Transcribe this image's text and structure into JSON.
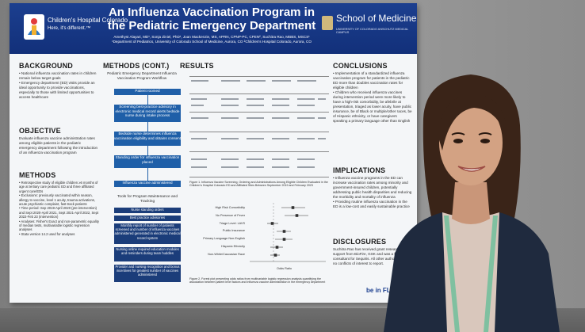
{
  "poster": {
    "title": "An Influenza Vaccination Program in the Pediatric Emergency Department",
    "authors": "Amethyst Alayari, MD¹, Sonja Ziniel, PhD¹, Joan Mackenzie, MS, APRN, CPNP-PC, CPEN², Suchitra Rao, MBBS, MSCS¹",
    "affiliations": "¹Department of Pediatrics, University of Colorado School of Medicine, Aurora, CO  ²Children's Hospital Colorado, Aurora, CO",
    "left_logo": {
      "name": "Children's Hospital Colorado",
      "tagline": "Here, it's different.™"
    },
    "right_logo": {
      "name": "School of Medicine",
      "sub": "UNIVERSITY OF COLORADO ANSCHUTZ MEDICAL CAMPUS"
    },
    "sections": {
      "background": {
        "heading": "BACKGROUND",
        "bullets": [
          "National influenza vaccination rates in children remain below target goals",
          "Emergency department (ED) visits provide an ideal opportunity to provide vaccinations, especially to those with limited opportunities to access healthcare"
        ]
      },
      "objective": {
        "heading": "OBJECTIVE",
        "text": "Evaluate influenza vaccine administration rates among eligible patients in the pediatric emergency department following the introduction of an influenza vaccination program"
      },
      "methods": {
        "heading": "METHODS",
        "bullets": [
          "Retrospective study of eligible children ≥6 months of age at tertiary care pediatric ED and three affiliated urgent care/EDs",
          "Exclusions: previously vaccinated within season, allergy to vaccine, level 1 acuity, trauma activations, acute psychiatric complaint, fast-track patients",
          "Time period: Sep 2019-April 2020 (pre-intervention) and Sept 2020-April 2021, Sept 2021-April 2022, Sept 2022-Feb 23 (intervention)",
          "Analyses: Fisher's Exact and non-parametric equality of median tests, multivariable logistic regression analyses",
          "Stata version 14.2 used for analyses"
        ]
      },
      "methods_cont": {
        "heading": "METHODS (CONT.)",
        "subtitle": "Pediatric Emergency Department Influenza Vaccination Program Workflow",
        "flow": [
          "Patient roomed",
          "Screening best-practice advisory in electronic medical record alerts bedside nurse during intake process",
          "Bedside nurse determines influenza vaccination eligibility and obtains consent",
          "Standing order for influenza vaccination placed",
          "Influenza vaccine administered"
        ],
        "tools_title": "Tools for Program Maintenance and Tracking",
        "tools": [
          "Nurse standing orders",
          "Best practice advisories",
          "Monthly report of number of patients screened and number of influenza vaccines administered generated in electronic medical record system",
          "Nursing online required education modules and reminders during team huddles",
          "Provider and nursing recognition and bonus incentives for greatest number of vaccines administered"
        ]
      },
      "results": {
        "heading": "RESULTS",
        "table_caption": "Figure 1. Influenza Vaccine Screening, Ordering and Administrations Among Eligible Children Evaluated in the Children's Hospital Colorado ED and Affiliated Sites Between September 2019 and February 2023",
        "figure2_caption": "Figure 2. Forest plot presenting odds ratios from multivariable logistic regression analysis quantifying the association between patient level factors and influenza vaccine administration in the emergency department",
        "forest_labels": [
          "High Risk Comorbidity",
          "No Presence of Fever",
          "Triage Level: LAVS",
          "Public Insurance",
          "Primary Language Non-English",
          "Hispanic Ethnicity",
          "Non-White/Caucasian Race"
        ],
        "forest_xlabel": "Odds Ratio"
      },
      "conclusions": {
        "heading": "CONCLUSIONS",
        "bullets": [
          "Implementation of a standardized influenza vaccination program for patients in the pediatric ED more than doubles vaccination rates for eligible children",
          "Children who received influenza vaccines during intervention period were more likely to have a high-risk comorbidity, be afebrile at presentation, triaged as lower acuity, have public insurance, be of Black or multiple/other races, be of Hispanic ethnicity, or have caregivers speaking a primary language other than English"
        ]
      },
      "implications": {
        "heading": "IMPLICATIONS",
        "bullets": [
          "Influenza vaccine programs in the ED can increase vaccination rates among minority and government-insured children, potentially addressing public health disparities and reducing the morbidity and mortality of influenza",
          "Providing routine influenza vaccination in the ED is a low-cost and easily sustainable practice"
        ]
      },
      "disclosures": {
        "heading": "DISCLOSURES",
        "text": "Suchitra Rao has received grant research support from BioFire, GSK and was a former consultant for Sequiris. All other authors have no conflicts of interest to report."
      }
    },
    "footer_logo": "be in FL"
  },
  "colors": {
    "banner": "#1c3f8f",
    "flow_box": "#1f5fa8",
    "flow_box_dark": "#1b3d7a",
    "blazer": "#1f2a3e",
    "lanyard": "#7fc0a0"
  }
}
